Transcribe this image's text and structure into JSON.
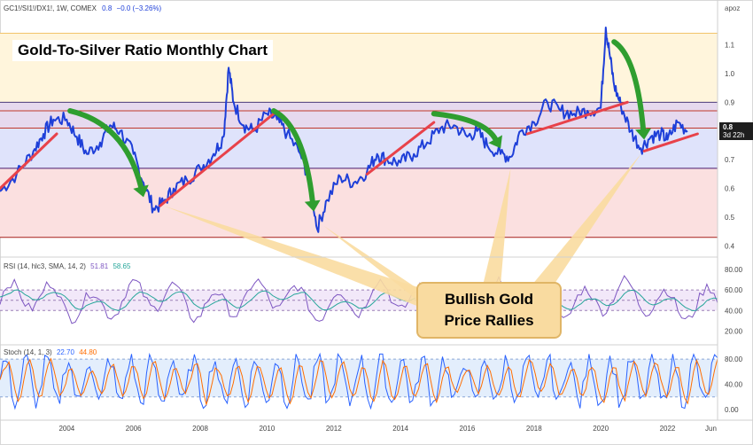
{
  "header": {
    "symbol": "GC1!/SI1!/DX1!, 1W, COMEX",
    "last": "0.8",
    "change": "−0.0 (−3.26%)",
    "scale_mode": "apoz"
  },
  "annotations": {
    "title": "Gold-To-Silver Ratio Monthly Chart",
    "callout_line1": "Bullish Gold",
    "callout_line2": "Price Rallies"
  },
  "price_badge": {
    "value": "0.8",
    "countdown": "3d 22h"
  },
  "rsi_legend": {
    "label": "RSI (14, hlc3, SMA, 14, 2)",
    "rsi_value": "51.81",
    "ma_value": "58.65"
  },
  "stoch_legend": {
    "label": "Stoch (14, 1, 3)",
    "k_value": "22.70",
    "d_value": "44.80"
  },
  "colors": {
    "price_line": "#1e3fd8",
    "trendline": "#e8424a",
    "arrow": "#2f9e2f",
    "rsi_line": "#7e57c2",
    "rsi_ma": "#26a69a",
    "stoch_k": "#2962ff",
    "stoch_d": "#ff6d00",
    "band_yellow": "#fff5dc",
    "band_purple": "#e6d9ee",
    "band_blue": "#dfe3fb",
    "band_pink": "#fbe0e0",
    "callout": "#f9dba0"
  },
  "chart_data": [
    {
      "type": "line",
      "series": [
        {
          "x": [
            2002.0,
            2002.5,
            2003.0,
            2003.3,
            2003.6,
            2004.0,
            2004.3,
            2004.6,
            2005.0,
            2005.3,
            2005.6,
            2006.0,
            2006.3,
            2006.6,
            2006.9,
            2007.2,
            2007.6,
            2008.0,
            2008.4,
            2008.7,
            2008.85,
            2009.0,
            2009.3,
            2009.6,
            2010.0,
            2010.3,
            2010.6,
            2011.0,
            2011.3,
            2011.5,
            2011.8,
            2012.2,
            2012.6,
            2013.0,
            2013.3,
            2013.6,
            2014.0,
            2014.4,
            2014.8,
            2015.2,
            2015.6,
            2016.0,
            2016.3,
            2016.6,
            2017.0,
            2017.3,
            2017.6,
            2018.0,
            2018.4,
            2018.8,
            2019.2,
            2019.6,
            2020.0,
            2020.15,
            2020.25,
            2020.4,
            2020.6,
            2020.9,
            2021.2,
            2021.5,
            2021.8,
            2022.0,
            2022.3,
            2022.6
          ],
          "values": [
            0.59,
            0.65,
            0.73,
            0.79,
            0.84,
            0.84,
            0.78,
            0.72,
            0.76,
            0.82,
            0.8,
            0.72,
            0.62,
            0.53,
            0.55,
            0.6,
            0.63,
            0.67,
            0.72,
            0.78,
            1.02,
            0.9,
            0.82,
            0.8,
            0.86,
            0.84,
            0.79,
            0.72,
            0.62,
            0.46,
            0.56,
            0.64,
            0.62,
            0.66,
            0.72,
            0.7,
            0.69,
            0.72,
            0.76,
            0.81,
            0.82,
            0.78,
            0.8,
            0.75,
            0.72,
            0.71,
            0.8,
            0.83,
            0.9,
            0.87,
            0.86,
            0.87,
            0.88,
            1.16,
            1.08,
            0.96,
            0.89,
            0.8,
            0.74,
            0.78,
            0.79,
            0.77,
            0.83,
            0.8
          ]
        }
      ],
      "xlim": [
        2002.0,
        2023.5
      ],
      "ylim": [
        0.38,
        1.2
      ],
      "yticks": [
        "1.1",
        "1.0",
        "0.9",
        "0.8",
        "0.7",
        "0.6",
        "0.5",
        "0.4"
      ],
      "xticks": [
        "2004",
        "2006",
        "2008",
        "2010",
        "2012",
        "2014",
        "2016",
        "2018",
        "2020",
        "2022",
        "Jun"
      ],
      "horizontal_levels": [
        1.14,
        0.9,
        0.87,
        0.81,
        0.67,
        0.43
      ],
      "trendlines": [
        {
          "x": [
            2002.0,
            2003.7
          ],
          "values": [
            0.6,
            0.79
          ]
        },
        {
          "x": [
            2006.8,
            2010.2
          ],
          "values": [
            0.54,
            0.86
          ]
        },
        {
          "x": [
            2013.0,
            2015.0
          ],
          "values": [
            0.65,
            0.83
          ]
        },
        {
          "x": [
            2017.8,
            2020.8
          ],
          "values": [
            0.79,
            0.9
          ]
        },
        {
          "x": [
            2021.3,
            2022.9
          ],
          "values": [
            0.73,
            0.79
          ]
        }
      ],
      "arrows": [
        {
          "from": [
            2004.1,
            0.87
          ],
          "to": [
            2006.3,
            0.57
          ]
        },
        {
          "from": [
            2010.2,
            0.87
          ],
          "to": [
            2011.4,
            0.52
          ]
        },
        {
          "from": [
            2015.0,
            0.86
          ],
          "to": [
            2017.0,
            0.74
          ]
        },
        {
          "from": [
            2020.4,
            1.11
          ],
          "to": [
            2021.3,
            0.77
          ]
        }
      ]
    },
    {
      "type": "line",
      "series": [
        {
          "name": "RSI"
        },
        {
          "name": "MA"
        }
      ],
      "ylim": [
        10,
        80
      ],
      "yticks": [
        "80.00",
        "60.00",
        "40.00",
        "20.00"
      ],
      "levels": [
        60,
        50,
        40
      ]
    },
    {
      "type": "line",
      "series": [
        {
          "name": "%K"
        },
        {
          "name": "%D"
        }
      ],
      "ylim": [
        0,
        90
      ],
      "yticks": [
        "80.00",
        "40.00",
        "0.00"
      ],
      "levels": [
        80,
        20
      ]
    }
  ]
}
